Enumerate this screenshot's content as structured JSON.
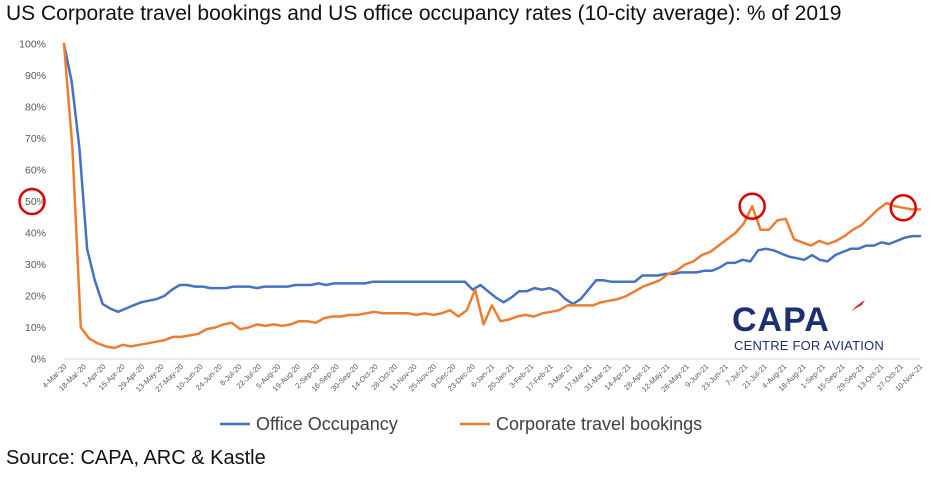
{
  "title": "US Corporate travel bookings and US office occupancy rates (10-city average): % of 2019",
  "source": "Source: CAPA, ARC & Kastle",
  "logo": {
    "word": "CAPA",
    "subtitle": "CENTRE FOR AVIATION"
  },
  "chart_data": {
    "type": "line",
    "xlabels": [
      "4-Mar-20",
      "18-Mar-20",
      "1-Apr-20",
      "15-Apr-20",
      "29-Apr-20",
      "13-May-20",
      "27-May-20",
      "10-Jun-20",
      "24-Jun-20",
      "8-Jul-20",
      "22-Jul-20",
      "5-Aug-20",
      "19-Aug-20",
      "2-Sep-20",
      "16-Sep-20",
      "30-Sep-20",
      "14-Oct-20",
      "28-Oct-20",
      "11-Nov-20",
      "25-Nov-20",
      "9-Dec-20",
      "23-Dec-20",
      "6-Jan-21",
      "20-Jan-21",
      "3-Feb-21",
      "17-Feb-21",
      "3-Mar-21",
      "17-Mar-21",
      "31-Mar-21",
      "14-Apr-21",
      "28-Apr-21",
      "12-May-21",
      "26-May-21",
      "9-Jun-21",
      "23-Jun-21",
      "7-Jul-21",
      "21-Jul-21",
      "4-Aug-21",
      "18-Aug-21",
      "1-Sep-21",
      "15-Sep-21",
      "29-Sep-21",
      "13-Oct-21",
      "27-Oct-21",
      "10-Nov-21"
    ],
    "ylim": [
      0,
      100
    ],
    "yticks": [
      0,
      10,
      20,
      30,
      40,
      50,
      60,
      70,
      80,
      90,
      100
    ],
    "ytick_suffix": "%",
    "grid": false,
    "legend_position": "bottom",
    "series": [
      {
        "name": "Office Occupancy",
        "color": "#4472c4",
        "values": [
          100,
          88,
          67,
          35,
          25,
          17.5,
          16,
          15,
          16,
          17,
          18,
          18.5,
          19,
          20,
          22,
          23.5,
          23.5,
          23,
          23,
          22.5,
          22.5,
          22.5,
          23,
          23,
          23,
          22.5,
          23,
          23,
          23,
          23,
          23.5,
          23.5,
          23.5,
          24,
          23.5,
          24,
          24,
          24,
          24,
          24,
          24.5,
          24.5,
          24.5,
          24.5,
          24.5,
          24.5,
          24.5,
          24.5,
          24.5,
          24.5,
          24.5,
          24.5,
          24.5,
          22,
          23.5,
          21.5,
          19.5,
          18,
          19.5,
          21.5,
          21.5,
          22.5,
          22,
          22.5,
          21.5,
          19,
          17.5,
          19,
          22,
          25,
          25,
          24.5,
          24.5,
          24.5,
          24.5,
          26.5,
          26.5,
          26.5,
          27,
          27,
          27.5,
          27.5,
          27.5,
          28,
          28,
          29,
          30.5,
          30.5,
          31.5,
          31,
          34.5,
          35,
          34.5,
          33.5,
          32.5,
          32,
          31.5,
          33,
          31.5,
          31,
          33,
          34,
          35,
          35,
          36,
          36,
          37,
          36.5,
          37.5,
          38.5,
          39,
          39
        ]
      },
      {
        "name": "Corporate travel bookings",
        "color": "#ed7d31",
        "values": [
          100,
          67,
          10,
          6.5,
          5,
          4,
          3.5,
          4.5,
          4,
          4.5,
          5,
          5.5,
          6,
          7,
          7,
          7.5,
          8,
          9.5,
          10,
          11,
          11.5,
          9.5,
          10,
          11,
          10.5,
          11,
          10.5,
          11,
          12,
          12,
          11.5,
          13,
          13.5,
          13.5,
          14,
          14,
          14.5,
          15,
          14.5,
          14.5,
          14.5,
          14.5,
          14,
          14.5,
          14,
          14.5,
          15.5,
          13.5,
          15.5,
          22,
          11,
          17,
          12,
          12.5,
          13.5,
          14,
          13.5,
          14.5,
          15,
          15.5,
          17,
          17,
          17,
          17,
          18,
          18.5,
          19,
          20,
          21.5,
          23,
          24,
          25,
          27,
          28,
          30,
          31,
          33,
          34,
          36,
          38,
          40,
          43,
          48.5,
          41,
          41,
          44,
          44.5,
          38,
          37,
          36,
          37.5,
          36.5,
          37.5,
          39,
          41,
          42.5,
          45,
          47.5,
          49.5,
          48.5,
          48,
          47.5,
          47.5
        ]
      }
    ],
    "annotations": [
      {
        "type": "circle",
        "target": "y-tick",
        "value": 50
      },
      {
        "type": "circle",
        "target": "series-peak",
        "series": 1,
        "label": "7-Jul-21",
        "value": 48.5
      },
      {
        "type": "circle",
        "target": "series-peak",
        "series": 1,
        "label": "27-Oct-21",
        "value": 49.5
      }
    ]
  }
}
